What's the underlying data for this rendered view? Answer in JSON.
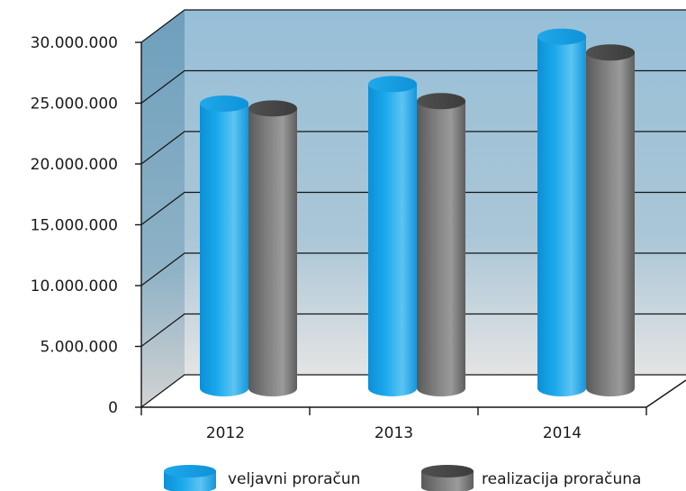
{
  "chart_data": {
    "type": "bar",
    "categories": [
      "2012",
      "2013",
      "2014"
    ],
    "series": [
      {
        "name": "veljavni proračun",
        "values": [
          22300000,
          23900000,
          27800000
        ],
        "color": "#1aa3e6"
      },
      {
        "name": "realizacija proračuna",
        "values": [
          21900000,
          22500000,
          26500000
        ],
        "color": "#7a7a7a"
      }
    ],
    "y_ticks": [
      "0",
      "5.000.000",
      "10.000.000",
      "15.000.000",
      "20.000.000",
      "25.000.000",
      "30.000.000"
    ],
    "ylim": [
      0,
      30000000
    ],
    "grid": true,
    "legend_position": "bottom",
    "style": "3d-cylinder",
    "background_gradient": [
      "#97bfd8",
      "#e2e2e2"
    ]
  }
}
